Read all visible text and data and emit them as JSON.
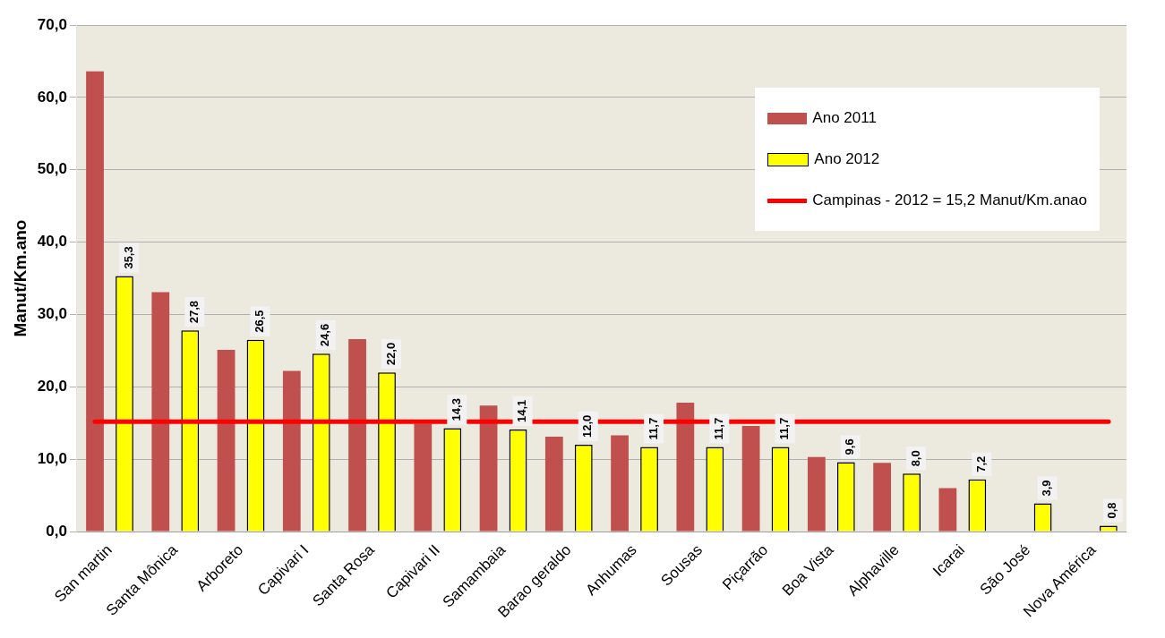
{
  "chart_data": {
    "type": "bar",
    "ylabel": "Manut/Km.ano",
    "categories": [
      "San martin",
      "Santa Mônica",
      "Arboreto",
      "Capivari I",
      "Santa Rosa",
      "Capivari II",
      "Samambaia",
      "Barao geraldo",
      "Anhumas",
      "Sousas",
      "Piçarrão",
      "Boa Vista",
      "Alphaville",
      "Icarai",
      "São José",
      "Nova América"
    ],
    "series": [
      {
        "name": "Ano 2011",
        "color": "#c0504d",
        "values": [
          63.6,
          33.1,
          25.1,
          22.2,
          26.6,
          14.9,
          17.4,
          13.1,
          13.3,
          17.8,
          14.6,
          10.3,
          9.5,
          6.0,
          null,
          null
        ]
      },
      {
        "name": "Ano 2012",
        "color": "#ffff00",
        "values": [
          35.3,
          27.8,
          26.5,
          24.6,
          22.0,
          14.3,
          14.1,
          12.0,
          11.7,
          11.7,
          11.7,
          9.6,
          8.0,
          7.2,
          3.9,
          0.8
        ],
        "value_labels": [
          "35,3",
          "27,8",
          "26,5",
          "24,6",
          "22,0",
          "14,3",
          "14,1",
          "12,0",
          "11,7",
          "11,7",
          "11,7",
          "9,6",
          "8,0",
          "7,2",
          "3,9",
          "0,8"
        ]
      }
    ],
    "ref_lines": [
      {
        "axis": "y",
        "value": 15.2,
        "label": "Campinas - 2012 = 15,2 Manut/Km.anao",
        "color": "#ff0000"
      }
    ],
    "ylim": [
      0,
      70
    ],
    "yticks": [
      {
        "value": 0,
        "label": "0,0"
      },
      {
        "value": 10,
        "label": "10,0"
      },
      {
        "value": 20,
        "label": "20,0"
      },
      {
        "value": 30,
        "label": "30,0"
      },
      {
        "value": 40,
        "label": "40,0"
      },
      {
        "value": 50,
        "label": "50,0"
      },
      {
        "value": 60,
        "label": "60,0"
      },
      {
        "value": 70,
        "label": "70,0"
      }
    ],
    "grid": "y",
    "legend": "top right"
  }
}
